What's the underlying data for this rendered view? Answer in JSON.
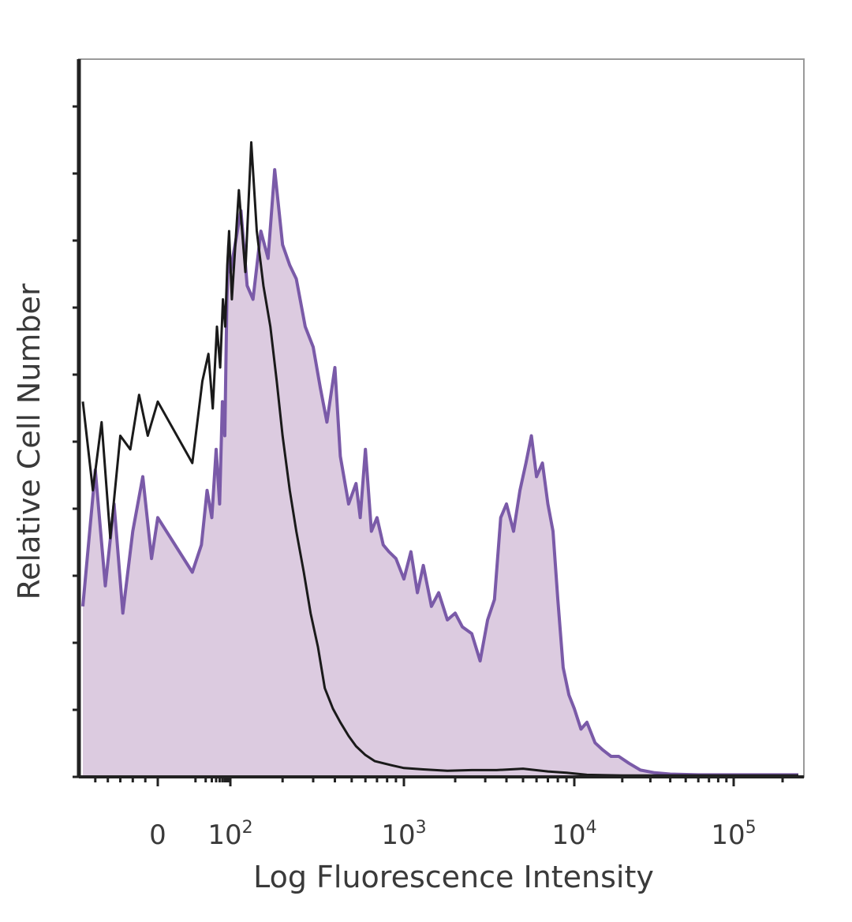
{
  "chart_data": {
    "type": "area",
    "xlabel": "Log Fluorescence Intensity",
    "ylabel": "Relative Cell Number",
    "x_scale": "biexponential",
    "xlim": [
      -60,
      250000
    ],
    "ylim": [
      0,
      100
    ],
    "grid": false,
    "x_ticks": [
      {
        "value": 0,
        "base": "0",
        "exp": ""
      },
      {
        "value": 100,
        "base": "10",
        "exp": "2"
      },
      {
        "value": 1000,
        "base": "10",
        "exp": "3"
      },
      {
        "value": 10000,
        "base": "10",
        "exp": "4"
      },
      {
        "value": 100000,
        "base": "10",
        "exp": "5"
      }
    ],
    "colors": {
      "stained_fill": "#dccbe0",
      "stained_line": "#7a5aa8",
      "control_line": "#1a1a1a",
      "axis": "#222222",
      "frame": "#9a9a9a"
    },
    "series": [
      {
        "role": "stained",
        "style": "filled",
        "points": [
          [
            -60,
            25
          ],
          [
            -50,
            45
          ],
          [
            -42,
            28
          ],
          [
            -35,
            40
          ],
          [
            -28,
            24
          ],
          [
            -20,
            36
          ],
          [
            -12,
            44
          ],
          [
            -5,
            32
          ],
          [
            0,
            38
          ],
          [
            8,
            30
          ],
          [
            15,
            34
          ],
          [
            22,
            42
          ],
          [
            30,
            38
          ],
          [
            40,
            48
          ],
          [
            50,
            40
          ],
          [
            60,
            55
          ],
          [
            70,
            50
          ],
          [
            80,
            70
          ],
          [
            90,
            78
          ],
          [
            100,
            74
          ],
          [
            115,
            83
          ],
          [
            125,
            72
          ],
          [
            135,
            70
          ],
          [
            150,
            80
          ],
          [
            165,
            76
          ],
          [
            180,
            89
          ],
          [
            200,
            78
          ],
          [
            220,
            75
          ],
          [
            240,
            73
          ],
          [
            270,
            66
          ],
          [
            300,
            63
          ],
          [
            330,
            57
          ],
          [
            360,
            52
          ],
          [
            400,
            60
          ],
          [
            430,
            47
          ],
          [
            480,
            40
          ],
          [
            530,
            43
          ],
          [
            560,
            38
          ],
          [
            600,
            48
          ],
          [
            650,
            36
          ],
          [
            700,
            38
          ],
          [
            760,
            34
          ],
          [
            820,
            33
          ],
          [
            900,
            32
          ],
          [
            1000,
            29
          ],
          [
            1100,
            33
          ],
          [
            1200,
            27
          ],
          [
            1300,
            31
          ],
          [
            1450,
            25
          ],
          [
            1600,
            27
          ],
          [
            1800,
            23
          ],
          [
            2000,
            24
          ],
          [
            2200,
            22
          ],
          [
            2500,
            21
          ],
          [
            2800,
            17
          ],
          [
            3100,
            23
          ],
          [
            3400,
            26
          ],
          [
            3700,
            38
          ],
          [
            4000,
            40
          ],
          [
            4400,
            36
          ],
          [
            4800,
            42
          ],
          [
            5200,
            46
          ],
          [
            5600,
            50
          ],
          [
            6000,
            44
          ],
          [
            6500,
            46
          ],
          [
            7000,
            40
          ],
          [
            7500,
            36
          ],
          [
            8000,
            26
          ],
          [
            8600,
            16
          ],
          [
            9300,
            12
          ],
          [
            10000,
            10
          ],
          [
            11000,
            7
          ],
          [
            12000,
            8
          ],
          [
            13500,
            5
          ],
          [
            15000,
            4
          ],
          [
            17000,
            3
          ],
          [
            19000,
            3
          ],
          [
            22000,
            2
          ],
          [
            26000,
            1
          ],
          [
            32000,
            0.6
          ],
          [
            40000,
            0.4
          ],
          [
            60000,
            0.3
          ],
          [
            100000,
            0.3
          ],
          [
            150000,
            0.3
          ],
          [
            250000,
            0.3
          ]
        ]
      },
      {
        "role": "control",
        "style": "line",
        "points": [
          [
            -60,
            55
          ],
          [
            -52,
            42
          ],
          [
            -45,
            52
          ],
          [
            -38,
            35
          ],
          [
            -30,
            50
          ],
          [
            -22,
            48
          ],
          [
            -15,
            56
          ],
          [
            -8,
            50
          ],
          [
            0,
            55
          ],
          [
            8,
            46
          ],
          [
            16,
            58
          ],
          [
            24,
            62
          ],
          [
            32,
            54
          ],
          [
            42,
            66
          ],
          [
            52,
            60
          ],
          [
            62,
            70
          ],
          [
            72,
            66
          ],
          [
            82,
            75
          ],
          [
            92,
            80
          ],
          [
            102,
            70
          ],
          [
            112,
            86
          ],
          [
            122,
            74
          ],
          [
            132,
            93
          ],
          [
            142,
            80
          ],
          [
            155,
            72
          ],
          [
            170,
            66
          ],
          [
            185,
            58
          ],
          [
            200,
            50
          ],
          [
            220,
            42
          ],
          [
            240,
            36
          ],
          [
            265,
            30
          ],
          [
            290,
            24
          ],
          [
            320,
            19
          ],
          [
            350,
            13
          ],
          [
            390,
            10
          ],
          [
            430,
            8
          ],
          [
            480,
            6
          ],
          [
            530,
            4.5
          ],
          [
            600,
            3.2
          ],
          [
            680,
            2.3
          ],
          [
            760,
            2
          ],
          [
            850,
            1.7
          ],
          [
            1000,
            1.3
          ],
          [
            1300,
            1.1
          ],
          [
            1800,
            0.9
          ],
          [
            2500,
            1.0
          ],
          [
            3500,
            1.0
          ],
          [
            5000,
            1.2
          ],
          [
            7000,
            0.8
          ],
          [
            9000,
            0.6
          ],
          [
            12000,
            0.3
          ],
          [
            20000,
            0.2
          ],
          [
            50000,
            0.2
          ],
          [
            250000,
            0.2
          ]
        ]
      }
    ]
  }
}
